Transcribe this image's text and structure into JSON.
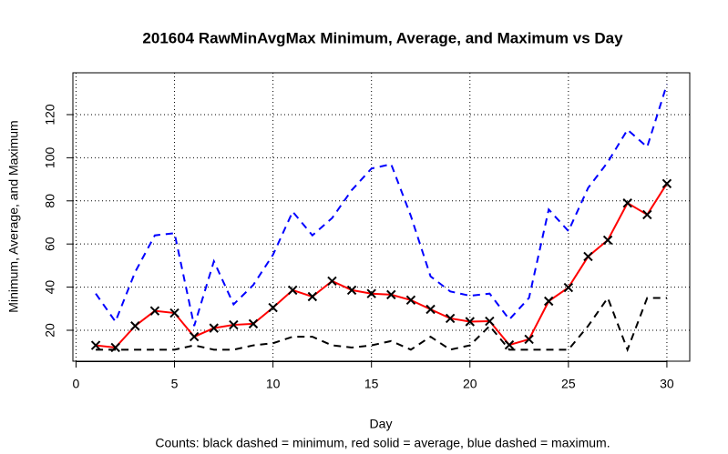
{
  "chart_data": {
    "type": "line",
    "title": "201604 RawMinAvgMax Minimum, Average, and Maximum vs Day",
    "x_label": "Day",
    "y_label": "Minimum, Average, and Maximum",
    "caption": "Counts: black dashed = minimum, red solid = average, blue dashed = maximum.",
    "x": [
      1,
      2,
      3,
      4,
      5,
      6,
      7,
      8,
      9,
      10,
      11,
      12,
      13,
      14,
      15,
      16,
      17,
      18,
      19,
      20,
      21,
      22,
      23,
      24,
      25,
      26,
      27,
      28,
      29,
      30
    ],
    "series": [
      {
        "color": "#000000",
        "line_style": "dashed",
        "marker": "none",
        "values": [
          11,
          11,
          11,
          11,
          11,
          13,
          11,
          11,
          13,
          14,
          17,
          17,
          13,
          12,
          13,
          15,
          11,
          17,
          11,
          13,
          22,
          11,
          11,
          11,
          11,
          22,
          35,
          11,
          35,
          35
        ]
      },
      {
        "color": "#ff0000",
        "line_style": "solid",
        "marker": "x",
        "values": [
          13,
          12,
          22,
          29,
          28,
          17,
          21,
          22.5,
          23,
          30.5,
          38.6,
          35.6,
          42.8,
          38.6,
          37,
          36.5,
          34,
          29.7,
          25.5,
          24,
          24.2,
          13.2,
          15.8,
          33.5,
          39.8,
          54.2,
          61.8,
          79,
          73.6,
          88
        ]
      },
      {
        "color": "#0000ff",
        "line_style": "dashed",
        "marker": "none",
        "values": [
          37,
          24,
          47,
          64,
          65,
          22,
          52,
          32,
          41,
          55,
          75,
          64,
          72,
          85,
          95,
          97,
          73,
          45,
          38,
          36,
          37,
          25,
          35,
          76,
          66,
          86,
          98,
          113,
          105,
          134
        ]
      }
    ],
    "xlim": [
      -0.16,
      31.16
    ],
    "ylim": [
      5.65,
      139.4
    ],
    "xticks": [
      0,
      5,
      10,
      15,
      20,
      25,
      30
    ],
    "yticks": [
      20,
      40,
      60,
      80,
      100,
      120
    ],
    "grid": true
  }
}
